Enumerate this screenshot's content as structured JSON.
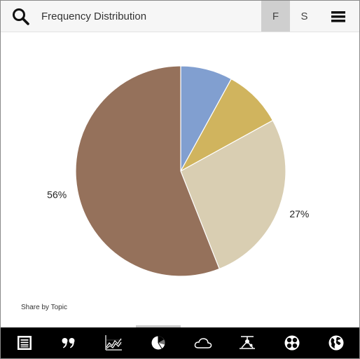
{
  "header": {
    "title": "Frequency Distribution",
    "toggle_f": "F",
    "toggle_s": "S",
    "active_toggle": "F",
    "search_icon": "search-icon",
    "menu_icon": "menu-icon"
  },
  "chart_data": {
    "type": "pie",
    "slices": [
      {
        "value": 8,
        "color": "#819fd0"
      },
      {
        "value": 9,
        "color": "#d0b45e"
      },
      {
        "value": 27,
        "color": "#d9ceb2",
        "label": "27%"
      },
      {
        "value": 56,
        "color": "#95715b",
        "label": "56%"
      }
    ],
    "caption": "Share by Topic"
  },
  "bottom_nav": {
    "items": [
      {
        "icon": "document-icon"
      },
      {
        "icon": "quote-icon"
      },
      {
        "icon": "line-chart-icon"
      },
      {
        "icon": "pie-chart-icon"
      },
      {
        "icon": "cloud-icon"
      },
      {
        "icon": "network-icon"
      },
      {
        "icon": "cluster-icon"
      },
      {
        "icon": "globe-icon"
      }
    ]
  }
}
